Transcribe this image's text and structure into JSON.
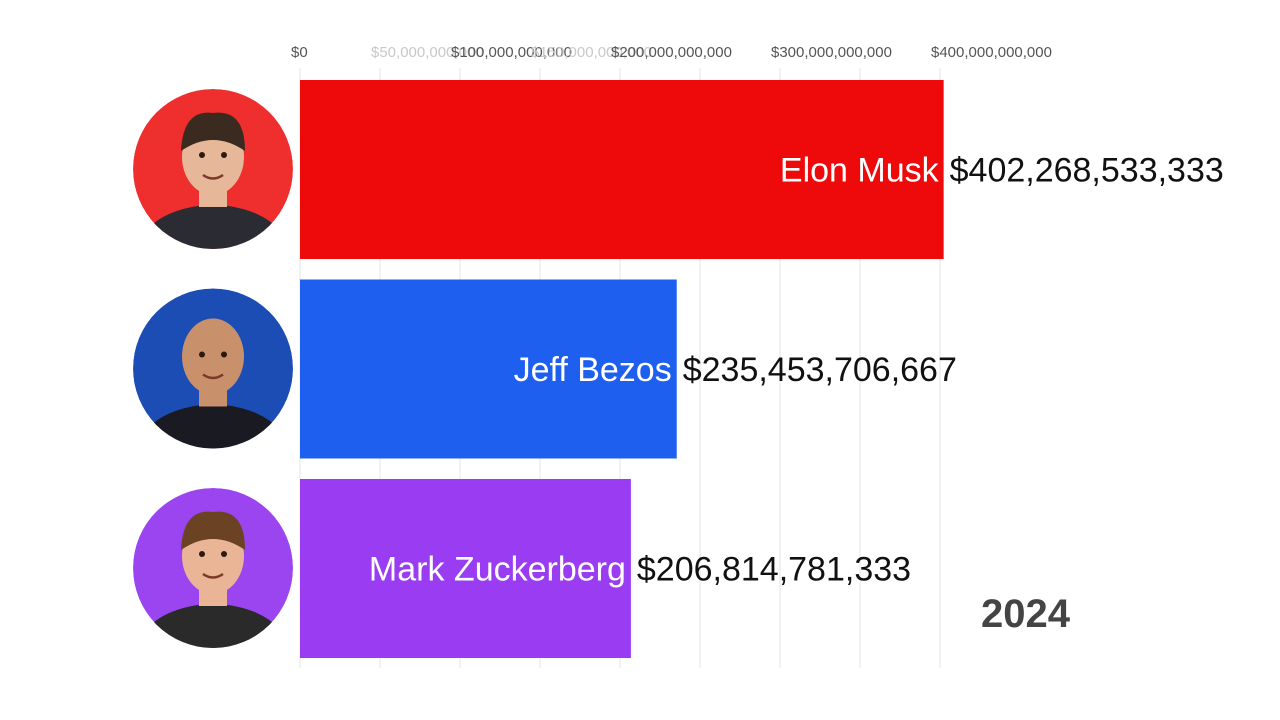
{
  "chart_data": {
    "type": "bar",
    "orientation": "horizontal",
    "title": "",
    "xlabel": "",
    "ylabel": "",
    "xlim": [
      0,
      450000000000
    ],
    "grid": true,
    "ticks": [
      {
        "value": 0,
        "label": "$0",
        "faded": false
      },
      {
        "value": 50000000000,
        "label": "$50,000,000,000",
        "faded": true
      },
      {
        "value": 100000000000,
        "label": "$100,000,000,000",
        "faded": false
      },
      {
        "value": 150000000000,
        "label": "$150,000,000,000",
        "faded": true
      },
      {
        "value": 200000000000,
        "label": "$200,000,000,000",
        "faded": false
      },
      {
        "value": 300000000000,
        "label": "$300,000,000,000",
        "faded": false
      },
      {
        "value": 400000000000,
        "label": "$400,000,000,000",
        "faded": false
      }
    ],
    "categories": [
      "Elon Musk",
      "Jeff Bezos",
      "Mark Zuckerberg"
    ],
    "values": [
      402268533333,
      235453706667,
      206814781333
    ],
    "value_labels": [
      "$402,268,533,333",
      "$235,453,706,667",
      "$206,814,781,333"
    ],
    "colors": [
      "#ee0a0a",
      "#1f5ff0",
      "#9a3df2"
    ],
    "avatars": [
      {
        "bg": "#ef2e2e",
        "skin": "#e7b79a",
        "hair": "#3a2a20",
        "shirt": "#2b2b33"
      },
      {
        "bg": "#1c4db5",
        "skin": "#c9906c",
        "hair": "#c9906c",
        "shirt": "#1a1a22"
      },
      {
        "bg": "#9a45f0",
        "skin": "#eab596",
        "hair": "#6b4224",
        "shirt": "#2a2a2a"
      }
    ],
    "period": "2024"
  }
}
